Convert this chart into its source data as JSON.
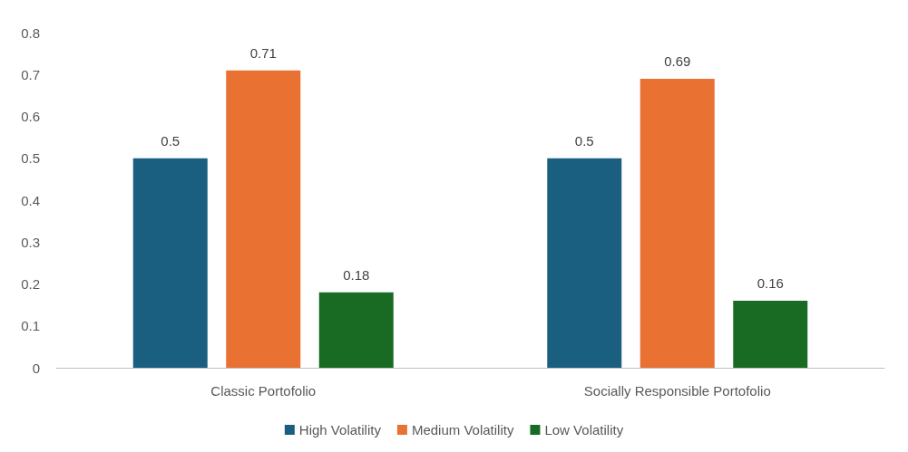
{
  "chart_data": {
    "type": "bar",
    "categories": [
      "Classic Portofolio",
      "Socially Responsible Portofolio"
    ],
    "series": [
      {
        "name": "High Volatility",
        "color": "#1a5f80",
        "values": [
          0.5,
          0.5
        ]
      },
      {
        "name": "Medium Volatility",
        "color": "#e97132",
        "values": [
          0.71,
          0.69
        ]
      },
      {
        "name": "Low Volatility",
        "color": "#196b24",
        "values": [
          0.18,
          0.16
        ]
      }
    ],
    "ylim": [
      0,
      0.8
    ],
    "yticks": [
      0,
      0.1,
      0.2,
      0.3,
      0.4,
      0.5,
      0.6,
      0.7,
      0.8
    ],
    "grid": false,
    "legend": "bottom",
    "data_labels": true
  }
}
